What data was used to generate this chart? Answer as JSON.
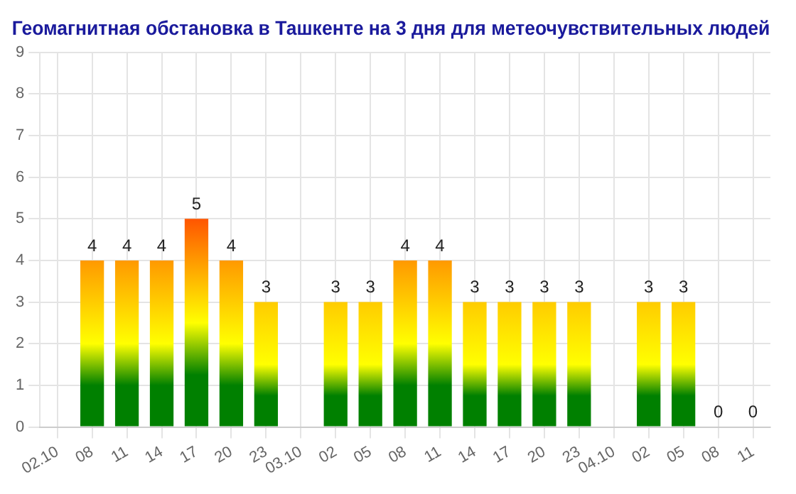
{
  "chart_data": {
    "type": "bar",
    "title": "Геомагнитная обстановка в Ташкенте на 3 дня для метеочувствительных людей",
    "categories": [
      "02.10",
      "08",
      "11",
      "14",
      "17",
      "20",
      "23",
      "03.10",
      "02",
      "05",
      "08",
      "11",
      "14",
      "17",
      "20",
      "23",
      "04.10",
      "02",
      "05",
      "08",
      "11"
    ],
    "values": [
      null,
      4,
      4,
      4,
      5,
      4,
      3,
      null,
      3,
      3,
      4,
      4,
      3,
      3,
      3,
      3,
      null,
      3,
      3,
      0,
      0
    ],
    "colors": [
      "#ff9900",
      "#ff9900",
      "#ff9900",
      "#ff9900",
      "#ff5500",
      "#ff9900",
      "#ffcc00",
      "#ff9900",
      "#ffcc00",
      "#ffcc00",
      "#ff9900",
      "#ff9900",
      "#ffcc00",
      "#ffcc00",
      "#ffcc00",
      "#ffcc00",
      "#ff9900",
      "#ffcc00",
      "#ffcc00",
      "#ffcc00",
      "#ffcc00"
    ],
    "ylim": [
      0,
      9
    ],
    "yticks": [
      0,
      1,
      2,
      3,
      4,
      5,
      6,
      7,
      8,
      9
    ],
    "grid": true,
    "data_labels": true,
    "legend": false
  }
}
